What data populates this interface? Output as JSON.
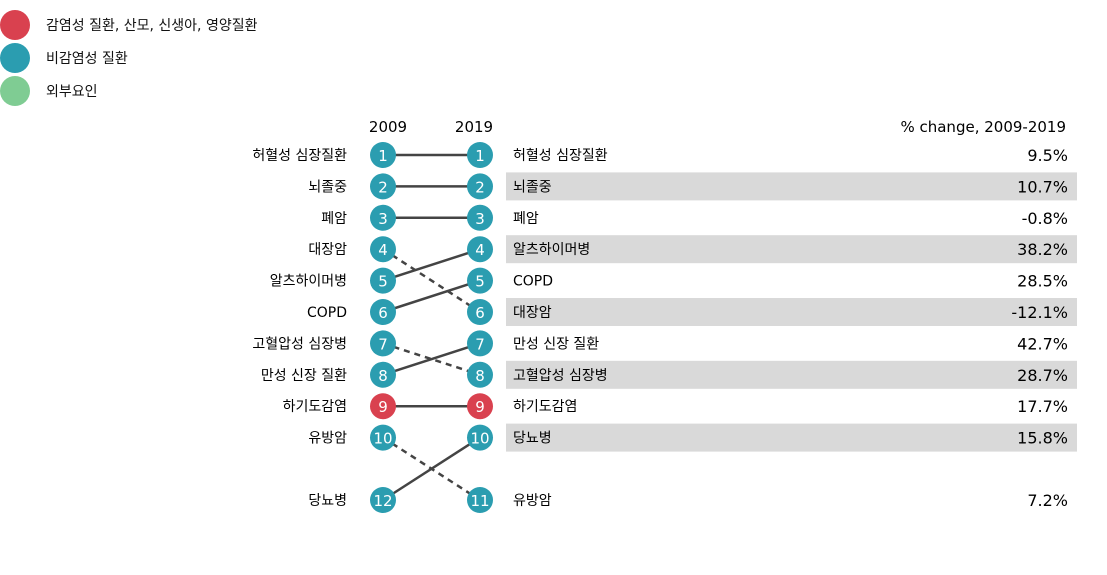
{
  "legend": [
    {
      "label": "감염성 질환, 산모, 신생아, 영양질환",
      "color": "#d9414f"
    },
    {
      "label": "비감염성 질환",
      "color": "#2b9db0"
    },
    {
      "label": "외부요인",
      "color": "#7fcc93"
    }
  ],
  "chart_data": {
    "type": "slope",
    "x": [
      "2009",
      "2019"
    ],
    "change_header": "% change, 2009-2019",
    "series": [
      {
        "name_2009": "허혈성 심장질환",
        "rank_2009": 1,
        "rank_2019": 1,
        "category": "비감염성 질환"
      },
      {
        "name_2009": "뇌졸중",
        "rank_2009": 2,
        "rank_2019": 2,
        "category": "비감염성 질환"
      },
      {
        "name_2009": "폐암",
        "rank_2009": 3,
        "rank_2019": 3,
        "category": "비감염성 질환"
      },
      {
        "name_2009": "대장암",
        "rank_2009": 4,
        "rank_2019": 6,
        "category": "비감염성 질환"
      },
      {
        "name_2009": "알츠하이머병",
        "rank_2009": 5,
        "rank_2019": 4,
        "category": "비감염성 질환"
      },
      {
        "name_2009": "COPD",
        "rank_2009": 6,
        "rank_2019": 5,
        "category": "비감염성 질환"
      },
      {
        "name_2009": "고혈압성 심장병",
        "rank_2009": 7,
        "rank_2019": 8,
        "category": "비감염성 질환"
      },
      {
        "name_2009": "만성 신장 질환",
        "rank_2009": 8,
        "rank_2019": 7,
        "category": "비감염성 질환"
      },
      {
        "name_2009": "하기도감염",
        "rank_2009": 9,
        "rank_2019": 9,
        "category": "감염성 질환, 산모, 신생아, 영양질환"
      },
      {
        "name_2009": "유방암",
        "rank_2009": 10,
        "rank_2019": 11,
        "category": "비감염성 질환"
      },
      {
        "name_2009": "당뇨병",
        "rank_2009": 12,
        "rank_2019": 10,
        "category": "비감염성 질환"
      }
    ],
    "right_list": [
      {
        "rank": 1,
        "name": "허혈성 심장질환",
        "change": "9.5%",
        "shaded": false,
        "category": "비감염성 질환"
      },
      {
        "rank": 2,
        "name": "뇌졸중",
        "change": "10.7%",
        "shaded": true,
        "category": "비감염성 질환"
      },
      {
        "rank": 3,
        "name": "폐암",
        "change": "-0.8%",
        "shaded": false,
        "category": "비감염성 질환"
      },
      {
        "rank": 4,
        "name": "알츠하이머병",
        "change": "38.2%",
        "shaded": true,
        "category": "비감염성 질환"
      },
      {
        "rank": 5,
        "name": "COPD",
        "change": "28.5%",
        "shaded": false,
        "category": "비감염성 질환"
      },
      {
        "rank": 6,
        "name": "대장암",
        "change": "-12.1%",
        "shaded": true,
        "category": "비감염성 질환"
      },
      {
        "rank": 7,
        "name": "만성 신장 질환",
        "change": "42.7%",
        "shaded": false,
        "category": "비감염성 질환"
      },
      {
        "rank": 8,
        "name": "고혈압성 심장병",
        "change": "28.7%",
        "shaded": true,
        "category": "비감염성 질환"
      },
      {
        "rank": 9,
        "name": "하기도감염",
        "change": "17.7%",
        "shaded": false,
        "category": "감염성 질환, 산모, 신생아, 영양질환"
      },
      {
        "rank": 10,
        "name": "당뇨병",
        "change": "15.8%",
        "shaded": true,
        "category": "비감염성 질환"
      },
      {
        "rank": 11,
        "name": "유방암",
        "change": "7.2%",
        "shaded": false,
        "category": "비감염성 질환"
      }
    ],
    "rank_up_line_style": "solid",
    "rank_down_line_style": "dashed",
    "line_color": "#444444",
    "shade_color": "#d9d9d9"
  }
}
